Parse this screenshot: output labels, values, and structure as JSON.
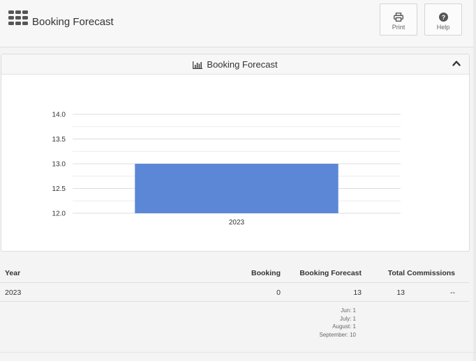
{
  "header": {
    "title": "Booking Forecast",
    "print_label": "Print",
    "help_label": "Help"
  },
  "panel": {
    "title": "Booking Forecast"
  },
  "chart_data": {
    "type": "bar",
    "categories": [
      "2023"
    ],
    "values": [
      13
    ],
    "title": "",
    "xlabel": "",
    "ylabel": "",
    "ylim": [
      12.0,
      14.0
    ],
    "yticks": [
      "12.0",
      "12.5",
      "13.0",
      "13.5",
      "14.0"
    ],
    "grid": true,
    "bar_color": "#5b87d6"
  },
  "table": {
    "headers": {
      "year": "Year",
      "booking": "Booking",
      "forecast": "Booking Forecast",
      "total": "Total",
      "commissions": "Commissions"
    },
    "row": {
      "year": "2023",
      "booking": "0",
      "forecast": "13",
      "total": "13",
      "commissions": "--"
    },
    "breakdown": [
      "Jun: 1",
      "July: 1",
      "August: 1",
      "September: 10"
    ]
  }
}
